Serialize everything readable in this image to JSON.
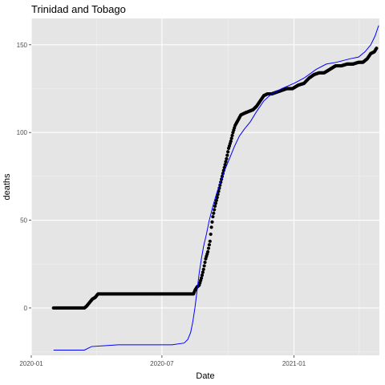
{
  "chart_data": {
    "type": "scatter",
    "title": "Trinidad and Tobago",
    "xlabel": "Date",
    "ylabel": "deaths",
    "x_scale": "date",
    "xlim": [
      "2020-01-01",
      "2021-04-30"
    ],
    "ylim": [
      -27,
      165
    ],
    "x_ticks": [
      {
        "value": "2020-01-01",
        "label": "2020-01"
      },
      {
        "value": "2020-07-01",
        "label": "2020-07"
      },
      {
        "value": "2021-01-01",
        "label": "2021-01"
      }
    ],
    "y_ticks": [
      0,
      50,
      100,
      150
    ],
    "grid": true,
    "background": "#e5e5e5",
    "series": [
      {
        "kind": "points",
        "color": "#000000",
        "points": [
          [
            "2020-02-01",
            0
          ],
          [
            "2020-03-15",
            0
          ],
          [
            "2020-03-18",
            1
          ],
          [
            "2020-03-22",
            3
          ],
          [
            "2020-03-26",
            5
          ],
          [
            "2020-03-30",
            6
          ],
          [
            "2020-04-03",
            8
          ],
          [
            "2020-08-14",
            8
          ],
          [
            "2020-08-16",
            10
          ],
          [
            "2020-08-19",
            12
          ],
          [
            "2020-08-22",
            13
          ],
          [
            "2020-08-25",
            17
          ],
          [
            "2020-08-28",
            22
          ],
          [
            "2020-08-31",
            28
          ],
          [
            "2020-09-03",
            32
          ],
          [
            "2020-09-06",
            38
          ],
          [
            "2020-09-08",
            46
          ],
          [
            "2020-09-10",
            52
          ],
          [
            "2020-09-13",
            58
          ],
          [
            "2020-09-16",
            63
          ],
          [
            "2020-09-20",
            70
          ],
          [
            "2020-09-23",
            75
          ],
          [
            "2020-09-26",
            80
          ],
          [
            "2020-09-29",
            85
          ],
          [
            "2020-10-02",
            91
          ],
          [
            "2020-10-05",
            95
          ],
          [
            "2020-10-08",
            100
          ],
          [
            "2020-10-11",
            104
          ],
          [
            "2020-10-15",
            107
          ],
          [
            "2020-10-19",
            110
          ],
          [
            "2020-10-24",
            111
          ],
          [
            "2020-10-30",
            112
          ],
          [
            "2020-11-05",
            113
          ],
          [
            "2020-11-10",
            115
          ],
          [
            "2020-11-15",
            118
          ],
          [
            "2020-11-20",
            121
          ],
          [
            "2020-11-25",
            122
          ],
          [
            "2020-12-01",
            122
          ],
          [
            "2020-12-08",
            123
          ],
          [
            "2020-12-15",
            124
          ],
          [
            "2020-12-22",
            125
          ],
          [
            "2020-12-30",
            125
          ],
          [
            "2021-01-07",
            127
          ],
          [
            "2021-01-15",
            128
          ],
          [
            "2021-01-22",
            131
          ],
          [
            "2021-01-29",
            133
          ],
          [
            "2021-02-05",
            134
          ],
          [
            "2021-02-12",
            134
          ],
          [
            "2021-02-20",
            136
          ],
          [
            "2021-02-28",
            138
          ],
          [
            "2021-03-08",
            138
          ],
          [
            "2021-03-16",
            139
          ],
          [
            "2021-03-24",
            139
          ],
          [
            "2021-04-01",
            140
          ],
          [
            "2021-04-07",
            140
          ],
          [
            "2021-04-13",
            142
          ],
          [
            "2021-04-18",
            145
          ],
          [
            "2021-04-23",
            146
          ],
          [
            "2021-04-26",
            148
          ]
        ]
      },
      {
        "kind": "line",
        "color": "#0000ff",
        "points": [
          [
            "2020-02-01",
            -24
          ],
          [
            "2020-03-15",
            -24
          ],
          [
            "2020-03-25",
            -22
          ],
          [
            "2020-05-01",
            -21
          ],
          [
            "2020-07-15",
            -21
          ],
          [
            "2020-08-01",
            -20
          ],
          [
            "2020-08-06",
            -18
          ],
          [
            "2020-08-10",
            -14
          ],
          [
            "2020-08-13",
            -8
          ],
          [
            "2020-08-16",
            0
          ],
          [
            "2020-08-19",
            10
          ],
          [
            "2020-08-22",
            20
          ],
          [
            "2020-08-25",
            28
          ],
          [
            "2020-08-28",
            35
          ],
          [
            "2020-09-01",
            42
          ],
          [
            "2020-09-05",
            50
          ],
          [
            "2020-09-10",
            58
          ],
          [
            "2020-09-15",
            65
          ],
          [
            "2020-09-20",
            71
          ],
          [
            "2020-09-26",
            78
          ],
          [
            "2020-10-03",
            85
          ],
          [
            "2020-10-10",
            92
          ],
          [
            "2020-10-17",
            98
          ],
          [
            "2020-10-24",
            102
          ],
          [
            "2020-11-01",
            106
          ],
          [
            "2020-11-10",
            112
          ],
          [
            "2020-11-20",
            118
          ],
          [
            "2020-12-01",
            122
          ],
          [
            "2020-12-15",
            125
          ],
          [
            "2021-01-01",
            128
          ],
          [
            "2021-01-15",
            131
          ],
          [
            "2021-02-01",
            136
          ],
          [
            "2021-02-15",
            139
          ],
          [
            "2021-03-01",
            140
          ],
          [
            "2021-03-20",
            142
          ],
          [
            "2021-04-01",
            143
          ],
          [
            "2021-04-10",
            146
          ],
          [
            "2021-04-18",
            150
          ],
          [
            "2021-04-24",
            155
          ],
          [
            "2021-04-29",
            161
          ]
        ]
      }
    ]
  }
}
